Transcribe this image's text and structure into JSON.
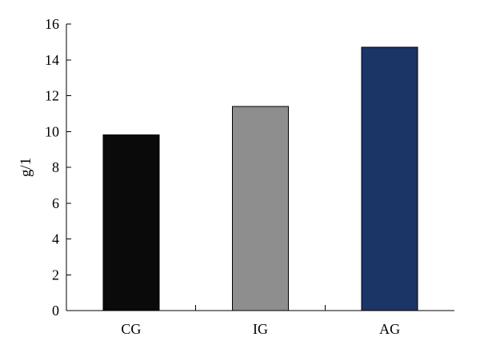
{
  "chart_data": {
    "type": "bar",
    "title": "",
    "xlabel": "",
    "ylabel": "g/1",
    "ylim": [
      0,
      16
    ],
    "y_ticks": [
      0,
      2,
      4,
      6,
      8,
      10,
      12,
      14,
      16
    ],
    "categories": [
      "CG",
      "IG",
      "AG"
    ],
    "values": [
      9.8,
      11.4,
      14.7
    ],
    "colors": [
      "#0a0a0a",
      "#8e8e8e",
      "#1a3566"
    ],
    "grid": false,
    "legend": "none"
  }
}
